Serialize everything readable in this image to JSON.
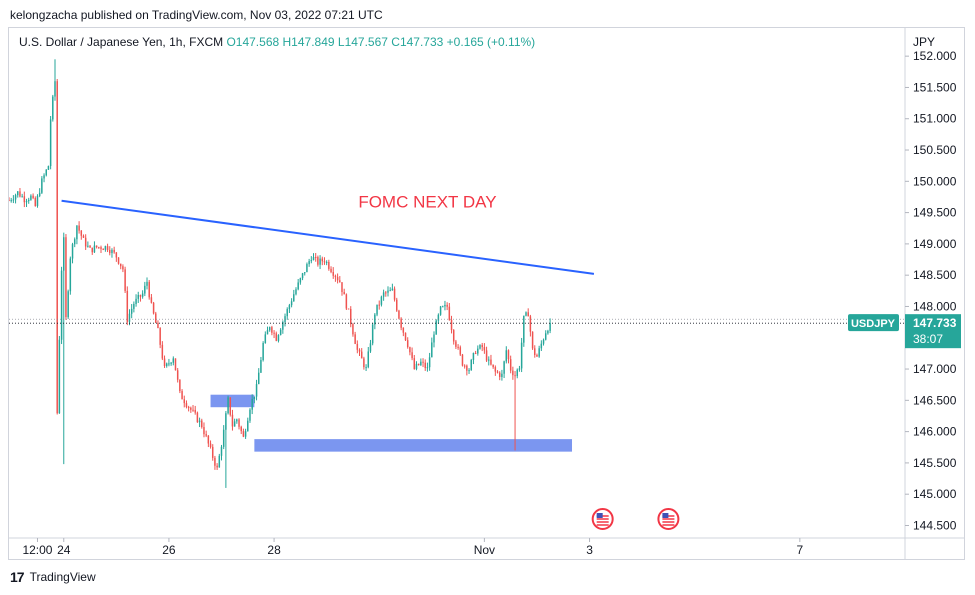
{
  "header": {
    "publisher": "kelongzacha published on TradingView.com, Nov 03, 2022 07:21 UTC"
  },
  "footer": {
    "logo_glyph": "17",
    "brand": "TradingView"
  },
  "chart_data": {
    "type": "candlestick",
    "symbol_line": {
      "name": "U.S. Dollar / Japanese Yen, 1h, FXCM",
      "open": "O147.568",
      "high": "H147.849",
      "low": "L147.567",
      "close": "C147.733",
      "change": "+0.165 (+0.11%)"
    },
    "currency_label": "JPY",
    "price_tag": {
      "symbol": "USDJPY",
      "price": "147.733",
      "countdown": "38:07",
      "value": 147.733
    },
    "y_axis": {
      "range": [
        144.3,
        152.45
      ],
      "ticks": [
        "144.500",
        "145.000",
        "145.500",
        "146.000",
        "146.500",
        "147.000",
        "147.500",
        "148.000",
        "148.500",
        "149.000",
        "149.500",
        "150.000",
        "150.500",
        "151.000",
        "151.500",
        "152.000"
      ]
    },
    "x_axis": {
      "range_days": [
        "2022-10-22T23:00",
        "2022-11-09T00:00"
      ],
      "ticks": [
        {
          "label": "12:00",
          "date": "2022-10-23T12:00"
        },
        {
          "label": "24",
          "date": "2022-10-24T00:00"
        },
        {
          "label": "26",
          "date": "2022-10-26T00:00"
        },
        {
          "label": "28",
          "date": "2022-10-28T00:00"
        },
        {
          "label": "Nov",
          "date": "2022-11-01T00:00"
        },
        {
          "label": "3",
          "date": "2022-11-03T00:00"
        },
        {
          "label": "7",
          "date": "2022-11-07T00:00"
        }
      ]
    },
    "colors": {
      "up": "#26a69a",
      "down": "#ef5350",
      "trendline": "#2962ff",
      "zone": "#7b96f0",
      "annotation": "#f23645",
      "tag": "#26a69a"
    },
    "annotations": [
      {
        "text": "FOMC NEXT DAY",
        "date": "2022-10-30T22:00",
        "price": 149.58
      }
    ],
    "trendline": {
      "from": {
        "date": "2022-10-23T23:00",
        "price": 149.69
      },
      "to": {
        "date": "2022-11-03T02:00",
        "price": 148.52
      }
    },
    "zones": [
      {
        "from_date": "2022-10-26T19:00",
        "to_date": "2022-10-27T15:00",
        "low": 146.39,
        "high": 146.59
      },
      {
        "from_date": "2022-10-27T15:00",
        "to_date": "2022-11-02T16:00",
        "low": 145.68,
        "high": 145.88
      }
    ],
    "event_markers": [
      {
        "date": "2022-11-03T06:00",
        "icon": "us-flag-icon"
      },
      {
        "date": "2022-11-04T12:00",
        "icon": "us-flag-icon"
      }
    ],
    "price_path": [
      [
        "2022-10-22T23:00",
        149.7
      ],
      [
        "2022-10-23T03:00",
        149.82
      ],
      [
        "2022-10-23T06:00",
        149.72
      ],
      [
        "2022-10-23T09:00",
        149.75
      ],
      [
        "2022-10-23T11:00",
        149.6
      ],
      [
        "2022-10-23T14:00",
        150.0
      ],
      [
        "2022-10-23T17:00",
        150.25
      ],
      [
        "2022-10-23T18:00",
        151.0
      ],
      [
        "2022-10-23T19:00",
        151.3
      ],
      [
        "2022-10-23T20:00",
        151.6
      ],
      [
        "2022-10-23T20:30",
        149.0
      ],
      [
        "2022-10-23T21:00",
        146.3
      ],
      [
        "2022-10-23T22:00",
        147.5
      ],
      [
        "2022-10-23T23:00",
        148.6
      ],
      [
        "2022-10-24T00:00",
        149.05
      ],
      [
        "2022-10-24T01:00",
        147.8
      ],
      [
        "2022-10-24T03:00",
        148.8
      ],
      [
        "2022-10-24T06:00",
        149.3
      ],
      [
        "2022-10-24T09:00",
        149.05
      ],
      [
        "2022-10-24T12:00",
        148.9
      ],
      [
        "2022-10-24T15:00",
        148.95
      ],
      [
        "2022-10-24T20:00",
        148.95
      ],
      [
        "2022-10-25T00:00",
        148.8
      ],
      [
        "2022-10-25T03:00",
        148.6
      ],
      [
        "2022-10-25T05:00",
        147.8
      ],
      [
        "2022-10-25T08:00",
        148.05
      ],
      [
        "2022-10-25T12:00",
        148.2
      ],
      [
        "2022-10-25T14:00",
        148.4
      ],
      [
        "2022-10-25T16:00",
        148.0
      ],
      [
        "2022-10-25T19:00",
        147.6
      ],
      [
        "2022-10-25T22:00",
        147.0
      ],
      [
        "2022-10-26T02:00",
        147.2
      ],
      [
        "2022-10-26T05:00",
        146.6
      ],
      [
        "2022-10-26T08:00",
        146.45
      ],
      [
        "2022-10-26T12:00",
        146.25
      ],
      [
        "2022-10-26T15:00",
        146.1
      ],
      [
        "2022-10-26T19:00",
        145.7
      ],
      [
        "2022-10-26T22:00",
        145.4
      ],
      [
        "2022-10-27T01:00",
        146.0
      ],
      [
        "2022-10-27T03:00",
        146.5
      ],
      [
        "2022-10-27T05:00",
        146.1
      ],
      [
        "2022-10-27T07:00",
        146.2
      ],
      [
        "2022-10-27T10:00",
        145.9
      ],
      [
        "2022-10-27T13:00",
        146.4
      ],
      [
        "2022-10-27T16:00",
        146.7
      ],
      [
        "2022-10-27T19:00",
        147.4
      ],
      [
        "2022-10-27T22:00",
        147.7
      ],
      [
        "2022-10-28T01:00",
        147.5
      ],
      [
        "2022-10-28T05:00",
        147.85
      ],
      [
        "2022-10-28T09:00",
        148.2
      ],
      [
        "2022-10-28T13:00",
        148.5
      ],
      [
        "2022-10-28T17:00",
        148.8
      ],
      [
        "2022-10-28T20:00",
        148.7
      ],
      [
        "2022-10-28T23:00",
        148.75
      ],
      [
        "2022-10-29T06:00",
        148.4
      ],
      [
        "2022-10-29T10:00",
        147.9
      ],
      [
        "2022-10-29T14:00",
        147.3
      ],
      [
        "2022-10-29T18:00",
        147.0
      ],
      [
        "2022-10-29T22:00",
        147.9
      ],
      [
        "2022-10-30T02:00",
        148.2
      ],
      [
        "2022-10-30T06:00",
        148.25
      ],
      [
        "2022-10-30T10:00",
        147.7
      ],
      [
        "2022-10-30T13:00",
        147.4
      ],
      [
        "2022-10-30T16:00",
        147.0
      ],
      [
        "2022-10-30T19:00",
        147.1
      ],
      [
        "2022-10-30T22:00",
        147.0
      ],
      [
        "2022-10-31T01:00",
        147.6
      ],
      [
        "2022-10-31T04:00",
        147.95
      ],
      [
        "2022-10-31T07:00",
        148.0
      ],
      [
        "2022-10-31T10:00",
        147.5
      ],
      [
        "2022-10-31T14:00",
        147.1
      ],
      [
        "2022-10-31T17:00",
        147.0
      ],
      [
        "2022-10-31T20:00",
        147.3
      ],
      [
        "2022-10-31T23:00",
        147.35
      ],
      [
        "2022-11-01T02:00",
        147.1
      ],
      [
        "2022-11-01T05:00",
        146.95
      ],
      [
        "2022-11-01T08:00",
        146.9
      ],
      [
        "2022-11-01T10:00",
        147.3
      ],
      [
        "2022-11-01T12:00",
        147.0
      ],
      [
        "2022-11-01T14:00",
        146.9
      ],
      [
        "2022-11-01T16:00",
        147.05
      ],
      [
        "2022-11-01T18:00",
        147.8
      ],
      [
        "2022-11-01T20:00",
        147.9
      ],
      [
        "2022-11-01T22:00",
        147.3
      ],
      [
        "2022-11-02T00:00",
        147.2
      ],
      [
        "2022-11-02T02:00",
        147.4
      ],
      [
        "2022-11-02T04:00",
        147.6
      ],
      [
        "2022-11-02T06:00",
        147.733
      ]
    ],
    "extreme_wicks": [
      {
        "date": "2022-10-23T20:00",
        "high": 151.95
      },
      {
        "date": "2022-10-24T00:00",
        "low": 145.48
      },
      {
        "date": "2022-11-01T14:00",
        "low": 145.7
      },
      {
        "date": "2022-10-27T02:00",
        "low": 145.1
      }
    ]
  }
}
